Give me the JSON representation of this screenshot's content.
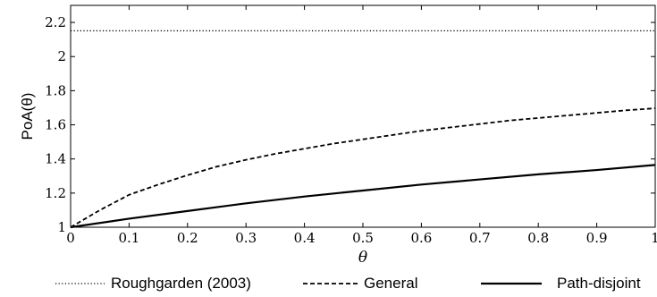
{
  "chart_data": {
    "type": "line",
    "xlabel": "θ",
    "ylabel": "PoA(θ)",
    "xlim": [
      0,
      1
    ],
    "ylim": [
      1,
      2.3
    ],
    "x_ticks": [
      "0",
      "0.1",
      "0.2",
      "0.3",
      "0.4",
      "0.5",
      "0.6",
      "0.7",
      "0.8",
      "0.9",
      "1"
    ],
    "y_ticks": [
      "1",
      "1.2",
      "1.4",
      "1.6",
      "1.8",
      "2",
      "2.2"
    ],
    "grid": false,
    "legend_position": "bottom",
    "series": [
      {
        "name": "Roughgarden (2003)",
        "style": "dotted",
        "color": "#000000",
        "x": [
          0,
          1
        ],
        "y": [
          2.151,
          2.151
        ]
      },
      {
        "name": "General",
        "style": "dashed",
        "color": "#000000",
        "x": [
          0,
          0.05,
          0.1,
          0.15,
          0.2,
          0.25,
          0.3,
          0.35,
          0.4,
          0.45,
          0.5,
          0.55,
          0.6,
          0.65,
          0.7,
          0.75,
          0.8,
          0.85,
          0.9,
          0.95,
          1.0
        ],
        "y": [
          1.0,
          1.1,
          1.19,
          1.25,
          1.305,
          1.355,
          1.395,
          1.43,
          1.46,
          1.49,
          1.515,
          1.54,
          1.565,
          1.585,
          1.605,
          1.625,
          1.64,
          1.655,
          1.67,
          1.685,
          1.697
        ]
      },
      {
        "name": "Path-disjoint",
        "style": "solid",
        "color": "#000000",
        "x": [
          0,
          0.1,
          0.2,
          0.3,
          0.4,
          0.5,
          0.6,
          0.7,
          0.8,
          0.9,
          1.0
        ],
        "y": [
          1.0,
          1.05,
          1.095,
          1.14,
          1.18,
          1.215,
          1.25,
          1.28,
          1.31,
          1.335,
          1.365
        ]
      }
    ]
  }
}
